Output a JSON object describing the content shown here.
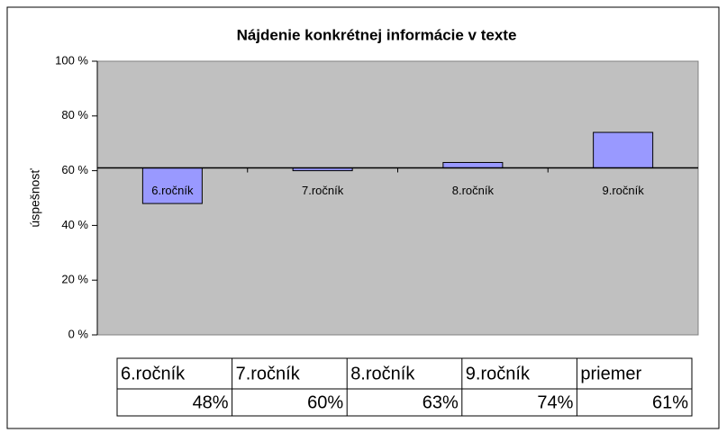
{
  "chart_data": {
    "type": "bar",
    "title": "Nájdenie konkrétnej informácie v texte",
    "ylabel": "úspešnosť",
    "categories": [
      "6.ročník",
      "7.ročník",
      "8.ročník",
      "9.ročník"
    ],
    "values": [
      48,
      60,
      63,
      74
    ],
    "value_labels": [
      "48%",
      "60%",
      "63%",
      "74%"
    ],
    "average": {
      "name": "priemer",
      "value": 61,
      "label": "61%"
    },
    "color": "#9999ff",
    "ylim": [
      0,
      100
    ],
    "yticks": [
      {
        "value": 0,
        "label": "0 %"
      },
      {
        "value": 20,
        "label": "20 %"
      },
      {
        "value": 40,
        "label": "40 %"
      },
      {
        "value": 60,
        "label": "60 %"
      },
      {
        "value": 80,
        "label": "80 %"
      },
      {
        "value": 100,
        "label": "100 %"
      }
    ]
  }
}
